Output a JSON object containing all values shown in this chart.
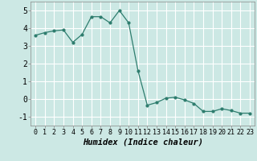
{
  "x": [
    0,
    1,
    2,
    3,
    4,
    5,
    6,
    7,
    8,
    9,
    10,
    11,
    12,
    13,
    14,
    15,
    16,
    17,
    18,
    19,
    20,
    21,
    22,
    23
  ],
  "y": [
    3.6,
    3.75,
    3.85,
    3.9,
    3.2,
    3.65,
    4.65,
    4.65,
    4.3,
    5.0,
    4.3,
    1.6,
    -0.35,
    -0.2,
    0.05,
    0.1,
    -0.05,
    -0.25,
    -0.7,
    -0.7,
    -0.55,
    -0.65,
    -0.8,
    -0.8
  ],
  "line_color": "#2e7d6e",
  "marker": "o",
  "markersize": 2.0,
  "linewidth": 0.9,
  "bg_color": "#cce8e4",
  "grid_color": "#ffffff",
  "xlabel": "Humidex (Indice chaleur)",
  "xlabel_fontsize": 7.5,
  "yticks": [
    -1,
    0,
    1,
    2,
    3,
    4,
    5
  ],
  "xticks": [
    0,
    1,
    2,
    3,
    4,
    5,
    6,
    7,
    8,
    9,
    10,
    11,
    12,
    13,
    14,
    15,
    16,
    17,
    18,
    19,
    20,
    21,
    22,
    23
  ],
  "ylim": [
    -1.5,
    5.5
  ],
  "xlim": [
    -0.5,
    23.5
  ],
  "tick_fontsize": 6.0,
  "ytick_fontsize": 7.0
}
